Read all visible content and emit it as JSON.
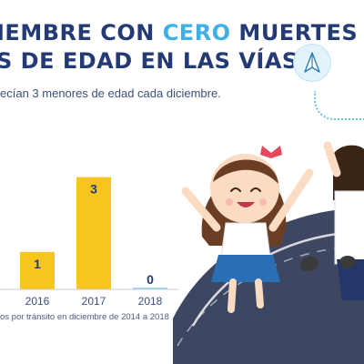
{
  "headline": {
    "line1_pre": "IEMBRE CON ",
    "line1_accent": "CERO",
    "line1_post": " MUERTES",
    "line2": "S DE EDAD EN LAS VÍAS."
  },
  "subtitle": "ecían 3 menores de edad cada diciembre.",
  "footnote": "os por tránsito en diciembre de 2014 a 2018",
  "colors": {
    "bar": "#f7c51e",
    "headline": "#243a75",
    "accent": "#3fb0e6",
    "zero_marker": "#9fd5ef",
    "road": "#3d4761"
  },
  "icons": {
    "badge": "paper-plane-icon"
  },
  "chart_data": {
    "type": "bar",
    "categories": [
      "2016",
      "2017",
      "2018"
    ],
    "values": [
      1,
      3,
      0
    ],
    "data_labels": [
      "1",
      "3",
      "0"
    ],
    "ylim": [
      0,
      3.6
    ],
    "title": "",
    "xlabel": "",
    "ylabel": ""
  }
}
